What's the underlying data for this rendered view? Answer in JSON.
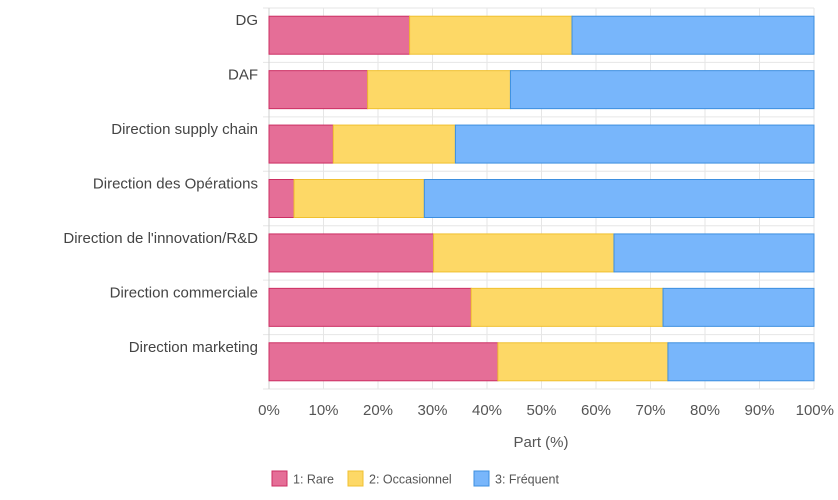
{
  "chart_data": {
    "type": "bar",
    "orientation": "horizontal",
    "stacked": true,
    "categories": [
      "DG",
      "DAF",
      "Direction supply chain",
      "Direction des Opérations",
      "Direction de l'innovation/R&D",
      "Direction commerciale",
      "Direction marketing"
    ],
    "series": [
      {
        "name": "1: Rare",
        "color": "#e56e97",
        "stroke": "#cc2f63",
        "values": [
          25.8,
          18.1,
          11.8,
          4.6,
          30.2,
          37.1,
          42.0
        ]
      },
      {
        "name": "2: Occasionnel",
        "color": "#fdd866",
        "stroke": "#f0c030",
        "values": [
          29.8,
          26.2,
          22.4,
          23.9,
          33.1,
          35.2,
          31.2
        ]
      },
      {
        "name": "3: Fréquent",
        "color": "#78b6fb",
        "stroke": "#3d8fdf",
        "values": [
          44.4,
          55.7,
          65.8,
          71.5,
          36.7,
          27.7,
          26.8
        ]
      }
    ],
    "xlabel": "Part (%)",
    "ylabel": "",
    "xlim": [
      0,
      100
    ],
    "xticks": [
      "0%",
      "10%",
      "20%",
      "30%",
      "40%",
      "50%",
      "60%",
      "70%",
      "80%",
      "90%",
      "100%"
    ],
    "grid": true,
    "legend_position": "bottom-left"
  }
}
